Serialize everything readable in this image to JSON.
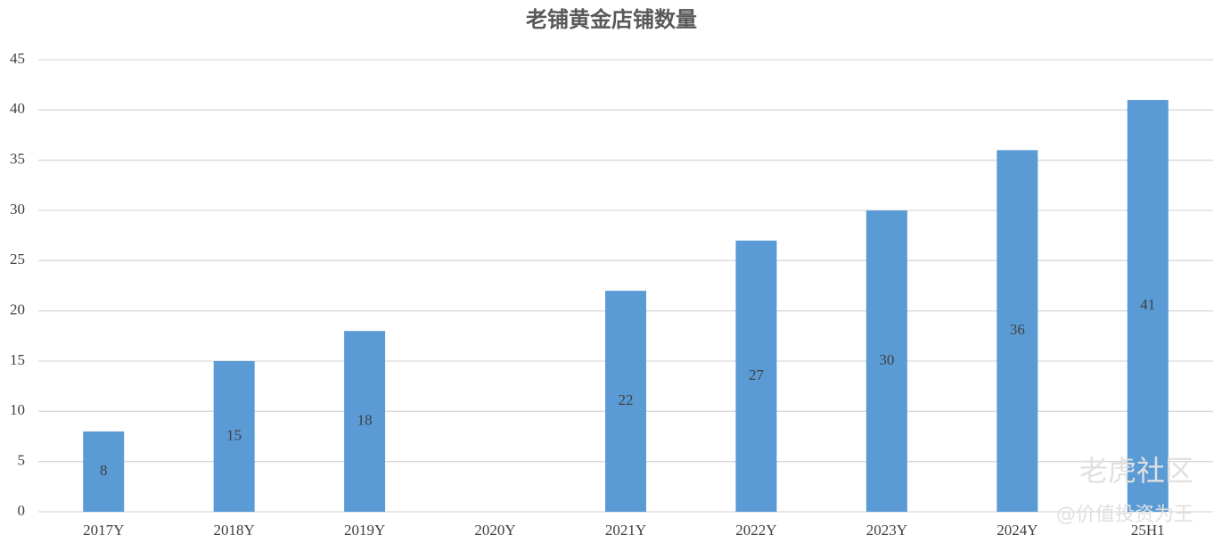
{
  "chart_data": {
    "type": "bar",
    "title": "老铺黄金店铺数量",
    "categories": [
      "2017Y",
      "2018Y",
      "2019Y",
      "2020Y",
      "2021Y",
      "2022Y",
      "2023Y",
      "2024Y",
      "25H1"
    ],
    "values": [
      8,
      15,
      18,
      null,
      22,
      27,
      30,
      36,
      41
    ],
    "color": "#5b9bd5",
    "ylim": [
      0,
      45
    ],
    "yticks": [
      0,
      5,
      10,
      15,
      20,
      25,
      30,
      35,
      40,
      45
    ],
    "grid": true,
    "data_labels": true
  },
  "watermark": {
    "logo": "老虎社区",
    "author": "@价值投资为王"
  }
}
